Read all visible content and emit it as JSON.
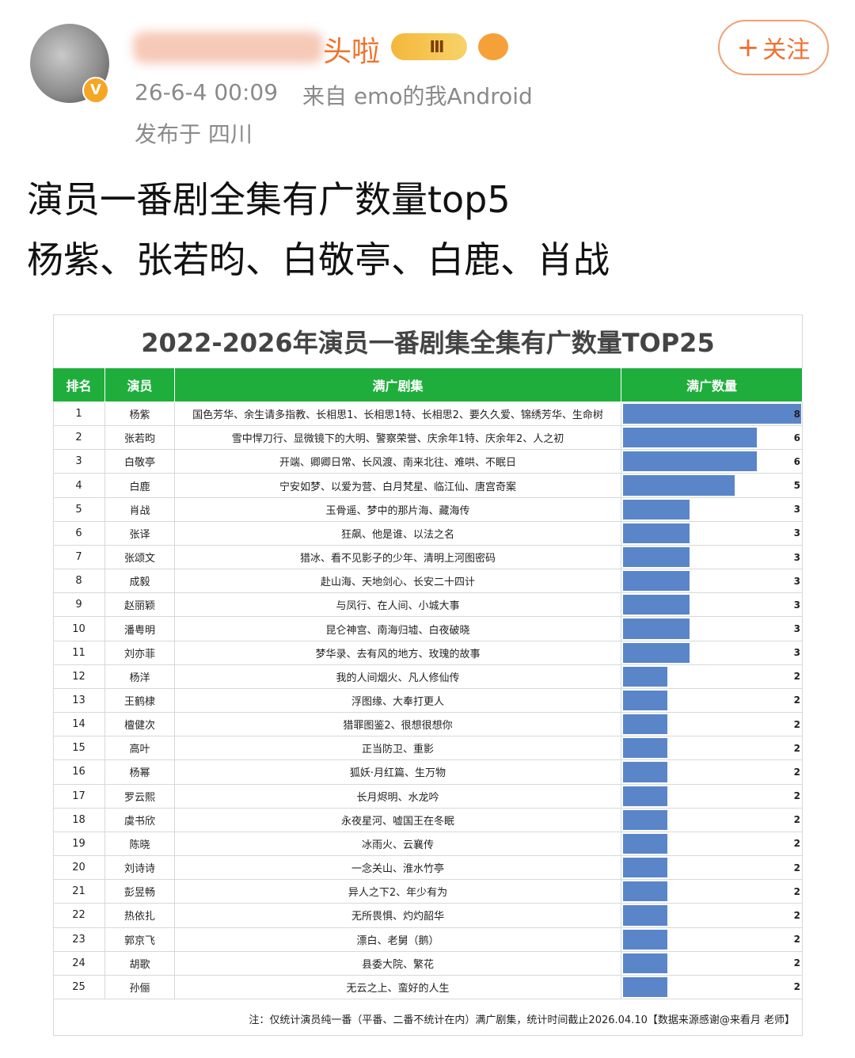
{
  "header": {
    "name_visible": "头啦",
    "badge": "Ⅲ",
    "time": "26-6-4 00:09",
    "source": "来自 emo的我Android",
    "location": "发布于 四川",
    "follow": "关注"
  },
  "post": {
    "lines": [
      "演员一番剧全集有广数量top5",
      "杨紫、张若昀、白敬亭、白鹿、肖战"
    ]
  },
  "table": {
    "title": "2022-2026年演员一番剧集全集有广数量TOP25",
    "columns": [
      "排名",
      "演员",
      "满广剧集",
      "满广数量"
    ],
    "bar_color": "#5a86c9",
    "rows": [
      [
        1,
        "杨紫",
        "国色芳华、余生请多指教、长相思1、长相思1特、长相思2、要久久爱、锦绣芳华、生命树",
        8
      ],
      [
        2,
        "张若昀",
        "雪中悍刀行、显微镜下的大明、警察荣誉、庆余年1特、庆余年2、人之初",
        6
      ],
      [
        3,
        "白敬亭",
        "开端、卿卿日常、长风渡、南来北往、难哄、不眠日",
        6
      ],
      [
        4,
        "白鹿",
        "宁安如梦、以爱为营、白月梵星、临江仙、唐宫奇案",
        5
      ],
      [
        5,
        "肖战",
        "玉骨遥、梦中的那片海、藏海传",
        3
      ],
      [
        6,
        "张译",
        "狂飙、他是谁、以法之名",
        3
      ],
      [
        7,
        "张颂文",
        "猎冰、看不见影子的少年、清明上河图密码",
        3
      ],
      [
        8,
        "成毅",
        "赴山海、天地剑心、长安二十四计",
        3
      ],
      [
        9,
        "赵丽颖",
        "与凤行、在人间、小城大事",
        3
      ],
      [
        10,
        "潘粤明",
        "昆仑神宫、南海归墟、白夜破晓",
        3
      ],
      [
        11,
        "刘亦菲",
        "梦华录、去有风的地方、玫瑰的故事",
        3
      ],
      [
        12,
        "杨洋",
        "我的人间烟火、凡人修仙传",
        2
      ],
      [
        13,
        "王鹤棣",
        "浮图缘、大奉打更人",
        2
      ],
      [
        14,
        "檀健次",
        "猎罪图鉴2、很想很想你",
        2
      ],
      [
        15,
        "高叶",
        "正当防卫、重影",
        2
      ],
      [
        16,
        "杨幂",
        "狐妖·月红篇、生万物",
        2
      ],
      [
        17,
        "罗云熙",
        "长月烬明、水龙吟",
        2
      ],
      [
        18,
        "虞书欣",
        "永夜星河、嘘国王在冬眠",
        2
      ],
      [
        19,
        "陈晓",
        "冰雨火、云襄传",
        2
      ],
      [
        20,
        "刘诗诗",
        "一念关山、淮水竹亭",
        2
      ],
      [
        21,
        "彭昱畅",
        "异人之下2、年少有为",
        2
      ],
      [
        22,
        "热依扎",
        "无所畏惧、灼灼韶华",
        2
      ],
      [
        23,
        "郭京飞",
        "漂白、老舅（鹅）",
        2
      ],
      [
        24,
        "胡歌",
        "县委大院、繁花",
        2
      ],
      [
        25,
        "孙俪",
        "无云之上、蛮好的人生",
        2
      ]
    ],
    "note": "注：仅统计演员纯一番（平番、二番不统计在内）满广剧集，统计时间截止2026.04.10【数据来源感谢@来看月 老师】"
  }
}
